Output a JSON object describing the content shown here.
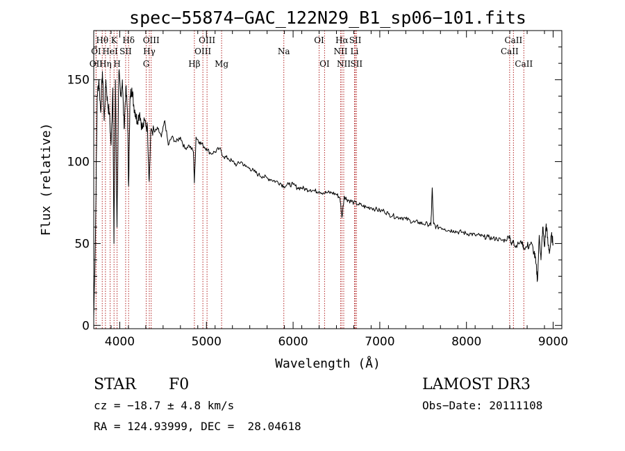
{
  "chart_data": {
    "type": "line",
    "title": "spec−55874−GAC_122N29_B1_sp06−101.fits",
    "xlabel": "Wavelength (Å)",
    "ylabel": "Flux (relative)",
    "xlim": [
      3700,
      9100
    ],
    "ylim": [
      -2,
      180
    ],
    "x_ticks": [
      4000,
      5000,
      6000,
      7000,
      8000,
      9000
    ],
    "y_ticks": [
      0,
      50,
      100,
      150
    ],
    "line_color": "#000000",
    "marker_color": "#b22222",
    "series": [
      {
        "x": [
          3700,
          3720,
          3740,
          3760,
          3780,
          3800,
          3820,
          3840,
          3860,
          3880,
          3900,
          3920,
          3933,
          3950,
          3968,
          3990,
          4010,
          4030,
          4050,
          4070,
          4090,
          4102,
          4120,
          4140,
          4160,
          4180,
          4200,
          4230,
          4260,
          4290,
          4320,
          4340,
          4360,
          4400,
          4440,
          4480,
          4520,
          4560,
          4600,
          4650,
          4700,
          4750,
          4800,
          4850,
          4861,
          4880,
          4920,
          4960,
          5000,
          5050,
          5100,
          5150,
          5200,
          5250,
          5300,
          5350,
          5400,
          5450,
          5500,
          5550,
          5600,
          5650,
          5700,
          5750,
          5800,
          5850,
          5893,
          5950,
          6000,
          6050,
          6100,
          6150,
          6200,
          6250,
          6300,
          6350,
          6400,
          6450,
          6500,
          6540,
          6563,
          6590,
          6620,
          6660,
          6700,
          6750,
          6800,
          6850,
          6900,
          6950,
          7000,
          7050,
          7100,
          7150,
          7200,
          7250,
          7300,
          7350,
          7400,
          7450,
          7500,
          7550,
          7590,
          7605,
          7620,
          7650,
          7700,
          7750,
          7800,
          7850,
          7900,
          7950,
          8000,
          8050,
          8100,
          8150,
          8200,
          8250,
          8300,
          8350,
          8400,
          8450,
          8498,
          8520,
          8542,
          8560,
          8600,
          8640,
          8662,
          8700,
          8740,
          8780,
          8800,
          8820,
          8840,
          8860,
          8880,
          8900,
          8920,
          8940,
          8960,
          8980,
          9000
        ],
        "y": [
          5,
          55,
          140,
          150,
          130,
          155,
          125,
          150,
          135,
          130,
          110,
          145,
          50,
          150,
          60,
          155,
          140,
          150,
          120,
          145,
          130,
          85,
          140,
          145,
          135,
          130,
          125,
          130,
          120,
          125,
          120,
          88,
          120,
          118,
          120,
          115,
          125,
          110,
          115,
          112,
          115,
          108,
          110,
          106,
          87,
          115,
          112,
          110,
          108,
          105,
          106,
          108,
          103,
          102,
          100,
          98,
          100,
          97,
          96,
          94,
          92,
          91,
          90,
          89,
          88,
          87,
          85,
          86,
          86,
          84,
          84,
          83,
          83,
          82,
          82,
          81,
          81,
          81,
          80,
          78,
          66,
          79,
          77,
          76,
          75,
          74,
          73,
          72,
          72,
          71,
          70,
          70,
          68,
          67,
          66,
          66,
          65,
          64,
          63,
          63,
          62,
          62,
          61,
          84,
          62,
          60,
          60,
          59,
          58,
          58,
          57,
          57,
          56,
          56,
          55,
          55,
          54,
          54,
          53,
          53,
          52,
          52,
          55,
          49,
          52,
          48,
          50,
          51,
          47,
          48,
          50,
          45,
          38,
          28,
          55,
          40,
          60,
          48,
          62,
          50,
          45,
          55,
          50
        ]
      }
    ],
    "lines": [
      {
        "label": "OI",
        "wl": 3727,
        "row": 2
      },
      {
        "label": "OII",
        "wl": 3727,
        "row": 3
      },
      {
        "label": "Hθ",
        "wl": 3798,
        "row": 1
      },
      {
        "label": "Hη",
        "wl": 3835,
        "row": 3
      },
      {
        "label": "HeI",
        "wl": 3889,
        "row": 2
      },
      {
        "label": "K",
        "wl": 3934,
        "row": 1
      },
      {
        "label": "H",
        "wl": 3969,
        "row": 3
      },
      {
        "label": "SII",
        "wl": 4068,
        "row": 2
      },
      {
        "label": "Hδ",
        "wl": 4102,
        "row": 1
      },
      {
        "label": "G",
        "wl": 4305,
        "row": 3
      },
      {
        "label": "OIII",
        "wl": 4363,
        "row": 1
      },
      {
        "label": "Hγ",
        "wl": 4341,
        "row": 2
      },
      {
        "label": "Hβ",
        "wl": 4861,
        "row": 3
      },
      {
        "label": "OIII",
        "wl": 5007,
        "row": 1
      },
      {
        "label": "OIII",
        "wl": 4959,
        "row": 2
      },
      {
        "label": "Mg",
        "wl": 5175,
        "row": 3
      },
      {
        "label": "Na",
        "wl": 5893,
        "row": 2
      },
      {
        "label": "OI",
        "wl": 6300,
        "row": 1
      },
      {
        "label": "OI",
        "wl": 6363,
        "row": 3
      },
      {
        "label": "Hα",
        "wl": 6563,
        "row": 1
      },
      {
        "label": "NII",
        "wl": 6548,
        "row": 2
      },
      {
        "label": "NII",
        "wl": 6584,
        "row": 3
      },
      {
        "label": "SII",
        "wl": 6717,
        "row": 1
      },
      {
        "label": "Li",
        "wl": 6708,
        "row": 2
      },
      {
        "label": "SII",
        "wl": 6731,
        "row": 3
      },
      {
        "label": "CaII",
        "wl": 8542,
        "row": 1
      },
      {
        "label": "CaII",
        "wl": 8498,
        "row": 2
      },
      {
        "label": "CaII",
        "wl": 8662,
        "row": 3
      }
    ]
  },
  "info": {
    "class": "STAR",
    "subclass": "F0",
    "survey": "LAMOST DR3",
    "cz": "cz = −18.7 ± 4.8 km/s",
    "obsdate": "Obs−Date: 20111108",
    "coords": "RA = 124.93999, DEC =  28.04618"
  }
}
